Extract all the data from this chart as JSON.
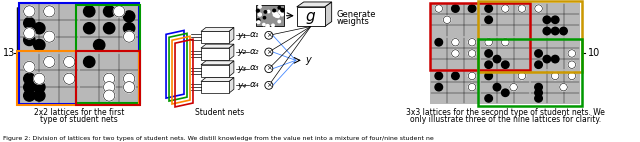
{
  "fig_caption": "Figure 2: Division of lattices for two types of student nets. We distill knowledge from the value net into a mixture of four/nine student ne",
  "left_label_line1": "2x2 lattices for the first",
  "left_label_line2": "type of student nets",
  "middle_label": "Student nets",
  "right_label_line1": "3x3 lattices for the second type of student nets. We",
  "right_label_line2": "only illustrate three of the nine lattices for clarity.",
  "generate_weights_text_line1": "Generate",
  "generate_weights_text_line2": "weights",
  "y_labels": [
    "y₁",
    "y₂",
    "y₃",
    "y₄"
  ],
  "alpha_labels": [
    "α₁",
    "α₂",
    "α₃",
    "α₄"
  ],
  "left_number": "13",
  "right_number": "10",
  "colors": {
    "blue": "#0000ee",
    "green": "#009900",
    "orange": "#ff8800",
    "red": "#cc0000",
    "gold": "#cc9900",
    "gray_bg": "#aaaaaa",
    "cell_bg": "#b8b8b8"
  }
}
